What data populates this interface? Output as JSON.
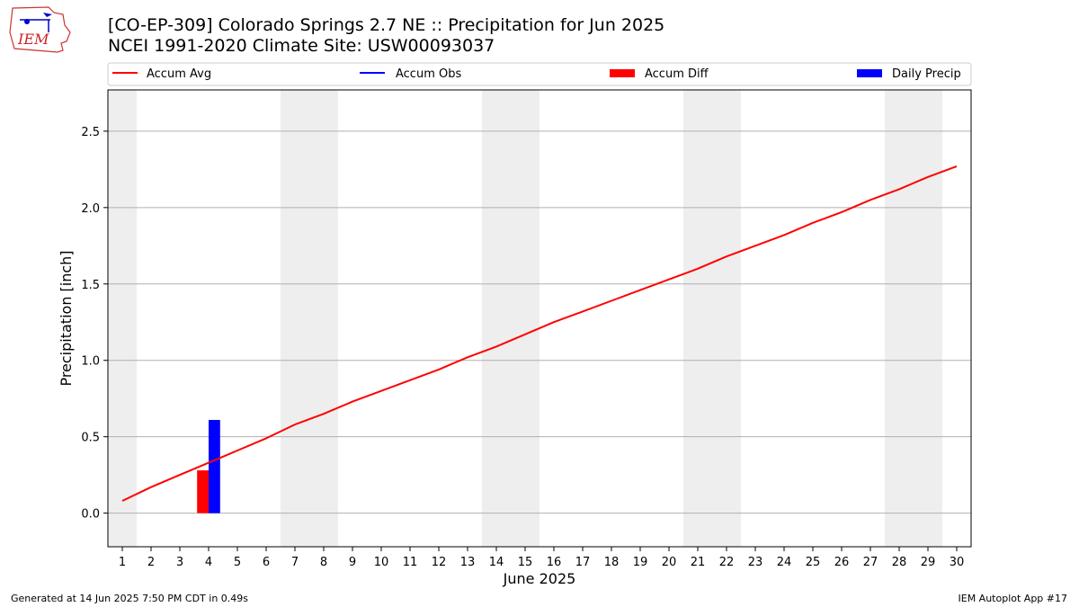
{
  "header": {
    "title": "[CO-EP-309] Colorado Springs 2.7 NE :: Precipitation for Jun 2025",
    "subtitle": "NCEI 1991-2020 Climate Site: USW00093037",
    "logo_text": "IEM"
  },
  "footer": {
    "generated": "Generated at 14 Jun 2025 7:50 PM CDT in 0.49s",
    "app": "IEM Autoplot App #17"
  },
  "colors": {
    "accum_avg": "#ff0000",
    "accum_obs": "#0000ff",
    "accum_diff": "#ff0000",
    "daily_precip": "#0000ff",
    "weekend_band": "#eeeeee",
    "grid": "#b0b0b0"
  },
  "chart_data": {
    "type": "line",
    "xlabel": "June 2025",
    "ylabel": "Precipitation [inch]",
    "xlim": [
      0.5,
      30.5
    ],
    "ylim": [
      -0.22,
      2.77
    ],
    "x_ticks": [
      1,
      2,
      3,
      4,
      5,
      6,
      7,
      8,
      9,
      10,
      11,
      12,
      13,
      14,
      15,
      16,
      17,
      18,
      19,
      20,
      21,
      22,
      23,
      24,
      25,
      26,
      27,
      28,
      29,
      30
    ],
    "y_ticks": [
      0.0,
      0.5,
      1.0,
      1.5,
      2.0,
      2.5
    ],
    "y_tick_labels": [
      "0.0",
      "0.5",
      "1.0",
      "1.5",
      "2.0",
      "2.5"
    ],
    "grid": "y",
    "weekend_bands": [
      [
        0.5,
        1.5
      ],
      [
        6.5,
        8.5
      ],
      [
        13.5,
        15.5
      ],
      [
        20.5,
        22.5
      ],
      [
        27.5,
        29.5
      ]
    ],
    "legend": {
      "placement": "top",
      "entries": [
        {
          "label": "Accum Avg",
          "kind": "line",
          "color": "#ff0000"
        },
        {
          "label": "Accum Obs",
          "kind": "line",
          "color": "#0000ff"
        },
        {
          "label": "Accum Diff",
          "kind": "bar",
          "color": "#ff0000"
        },
        {
          "label": "Daily Precip",
          "kind": "bar",
          "color": "#0000ff"
        }
      ]
    },
    "series": [
      {
        "name": "Accum Avg",
        "type": "line",
        "color": "#ff0000",
        "x": [
          1,
          2,
          3,
          4,
          5,
          6,
          7,
          8,
          9,
          10,
          11,
          12,
          13,
          14,
          15,
          16,
          17,
          18,
          19,
          20,
          21,
          22,
          23,
          24,
          25,
          26,
          27,
          28,
          29,
          30
        ],
        "values": [
          0.08,
          0.17,
          0.25,
          0.33,
          0.41,
          0.49,
          0.58,
          0.65,
          0.73,
          0.8,
          0.87,
          0.94,
          1.02,
          1.09,
          1.17,
          1.25,
          1.32,
          1.39,
          1.46,
          1.53,
          1.6,
          1.68,
          1.75,
          1.82,
          1.9,
          1.97,
          2.05,
          2.12,
          2.2,
          2.27
        ]
      },
      {
        "name": "Accum Diff",
        "type": "bar",
        "color": "#ff0000",
        "x": [
          4
        ],
        "values": [
          0.28
        ]
      },
      {
        "name": "Daily Precip",
        "type": "bar",
        "color": "#0000ff",
        "x": [
          4
        ],
        "values": [
          0.61
        ]
      }
    ]
  }
}
